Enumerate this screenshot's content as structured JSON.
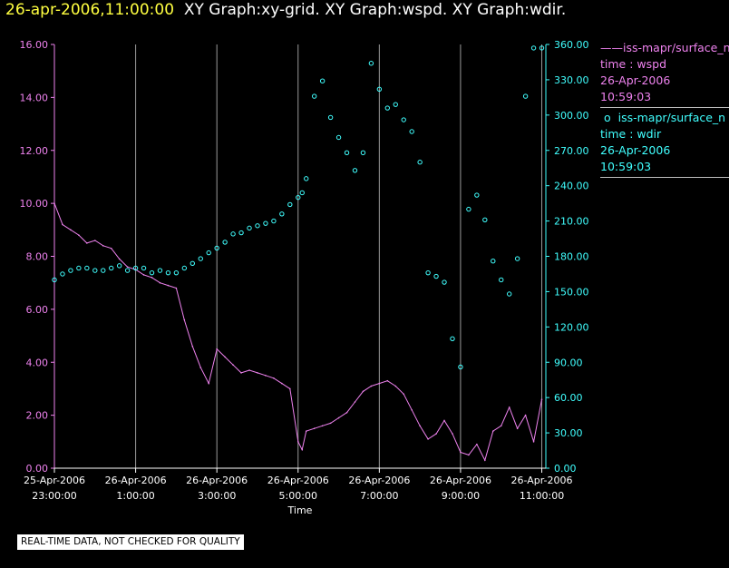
{
  "header": {
    "timestamp": "26-apr-2006,11:00:00",
    "titles": "XY Graph:xy-grid.  XY Graph:wspd.  XY Graph:wdir."
  },
  "legend": [
    {
      "symbol": "——",
      "name": "iss-mapr/surface_n",
      "var": "time : wspd",
      "date": "26-Apr-2006",
      "time": "10:59:03"
    },
    {
      "symbol": "o",
      "name": "iss-mapr/surface_n",
      "var": "time : wdir",
      "date": "26-Apr-2006",
      "time": "10:59:03"
    }
  ],
  "disclaimer": "REAL-TIME DATA, NOT CHECKED FOR QUALITY",
  "chart_data": {
    "type": "line",
    "xlabel": "Time",
    "x_unit": "hours",
    "xlim": [
      23.0,
      35.1
    ],
    "x_ticks": [
      {
        "value": 23,
        "date": "25-Apr-2006",
        "time": "23:00:00"
      },
      {
        "value": 25,
        "date": "26-Apr-2006",
        "time": "1:00:00"
      },
      {
        "value": 27,
        "date": "26-Apr-2006",
        "time": "3:00:00"
      },
      {
        "value": 29,
        "date": "26-Apr-2006",
        "time": "5:00:00"
      },
      {
        "value": 31,
        "date": "26-Apr-2006",
        "time": "7:00:00"
      },
      {
        "value": 33,
        "date": "26-Apr-2006",
        "time": "9:00:00"
      },
      {
        "value": 35,
        "date": "26-Apr-2006",
        "time": "11:00:00"
      }
    ],
    "grid_x": [
      25,
      27,
      29,
      31,
      33,
      35
    ],
    "y_left": {
      "lim": [
        0,
        16
      ],
      "ticks": [
        "0.00",
        "2.00",
        "4.00",
        "6.00",
        "8.00",
        "10.00",
        "12.00",
        "14.00",
        "16.00"
      ],
      "color": "#ee82ee"
    },
    "y_right": {
      "lim": [
        0,
        360
      ],
      "ticks": [
        "0.00",
        "30.00",
        "60.00",
        "90.00",
        "120.00",
        "150.00",
        "180.00",
        "210.00",
        "240.00",
        "270.00",
        "300.00",
        "330.00",
        "360.00"
      ],
      "color": "#40ffff"
    },
    "series": [
      {
        "name": "iss-mapr/surface_n time : wspd",
        "axis": "left",
        "style": "line",
        "color": "#ee82ee",
        "x": [
          23.0,
          23.2,
          23.4,
          23.6,
          23.8,
          24.0,
          24.2,
          24.4,
          24.6,
          24.8,
          25.0,
          25.2,
          25.4,
          25.6,
          25.8,
          26.0,
          26.2,
          26.4,
          26.6,
          26.8,
          27.0,
          27.2,
          27.4,
          27.6,
          27.8,
          28.0,
          28.2,
          28.4,
          28.6,
          28.8,
          29.0,
          29.1,
          29.2,
          29.4,
          29.6,
          29.8,
          30.0,
          30.2,
          30.4,
          30.6,
          30.8,
          31.0,
          31.2,
          31.4,
          31.6,
          31.8,
          32.0,
          32.2,
          32.4,
          32.6,
          32.8,
          33.0,
          33.2,
          33.4,
          33.6,
          33.8,
          34.0,
          34.2,
          34.4,
          34.6,
          34.8,
          35.0
        ],
        "y": [
          10.0,
          9.2,
          9.0,
          8.8,
          8.5,
          8.6,
          8.4,
          8.3,
          7.9,
          7.6,
          7.5,
          7.3,
          7.2,
          7.0,
          6.9,
          6.8,
          5.6,
          4.6,
          3.8,
          3.2,
          4.5,
          4.2,
          3.9,
          3.6,
          3.7,
          3.6,
          3.5,
          3.4,
          3.2,
          3.0,
          1.0,
          0.7,
          1.4,
          1.5,
          1.6,
          1.7,
          1.9,
          2.1,
          2.5,
          2.9,
          3.1,
          3.2,
          3.3,
          3.1,
          2.8,
          2.2,
          1.6,
          1.1,
          1.3,
          1.8,
          1.3,
          0.6,
          0.5,
          0.9,
          0.3,
          1.4,
          1.6,
          2.3,
          1.5,
          2.0,
          1.0,
          2.6
        ]
      },
      {
        "name": "iss-mapr/surface_n time : wdir",
        "axis": "right",
        "style": "circle",
        "color": "#40ffff",
        "x": [
          23.0,
          23.2,
          23.4,
          23.6,
          23.8,
          24.0,
          24.2,
          24.4,
          24.6,
          24.8,
          25.0,
          25.2,
          25.4,
          25.6,
          25.8,
          26.0,
          26.2,
          26.4,
          26.6,
          26.8,
          27.0,
          27.2,
          27.4,
          27.6,
          27.8,
          28.0,
          28.2,
          28.4,
          28.6,
          28.8,
          29.0,
          29.1,
          29.2,
          29.4,
          29.6,
          29.8,
          30.0,
          30.2,
          30.4,
          30.6,
          30.8,
          31.0,
          31.2,
          31.4,
          31.6,
          31.8,
          32.0,
          32.2,
          32.4,
          32.6,
          32.8,
          33.0,
          33.2,
          33.4,
          33.6,
          33.8,
          34.0,
          34.2,
          34.4,
          34.6,
          34.8,
          35.0
        ],
        "y": [
          160,
          165,
          168,
          170,
          170,
          168,
          168,
          170,
          172,
          168,
          170,
          170,
          166,
          168,
          166,
          166,
          170,
          174,
          178,
          183,
          187,
          192,
          199,
          200,
          204,
          206,
          208,
          210,
          216,
          224,
          230,
          234,
          246,
          316,
          329,
          298,
          281,
          268,
          253,
          268,
          344,
          322,
          306,
          309,
          296,
          286,
          260,
          166,
          163,
          158,
          110,
          86,
          220,
          232,
          211,
          176,
          160,
          148,
          178,
          316,
          357,
          357
        ]
      }
    ]
  }
}
